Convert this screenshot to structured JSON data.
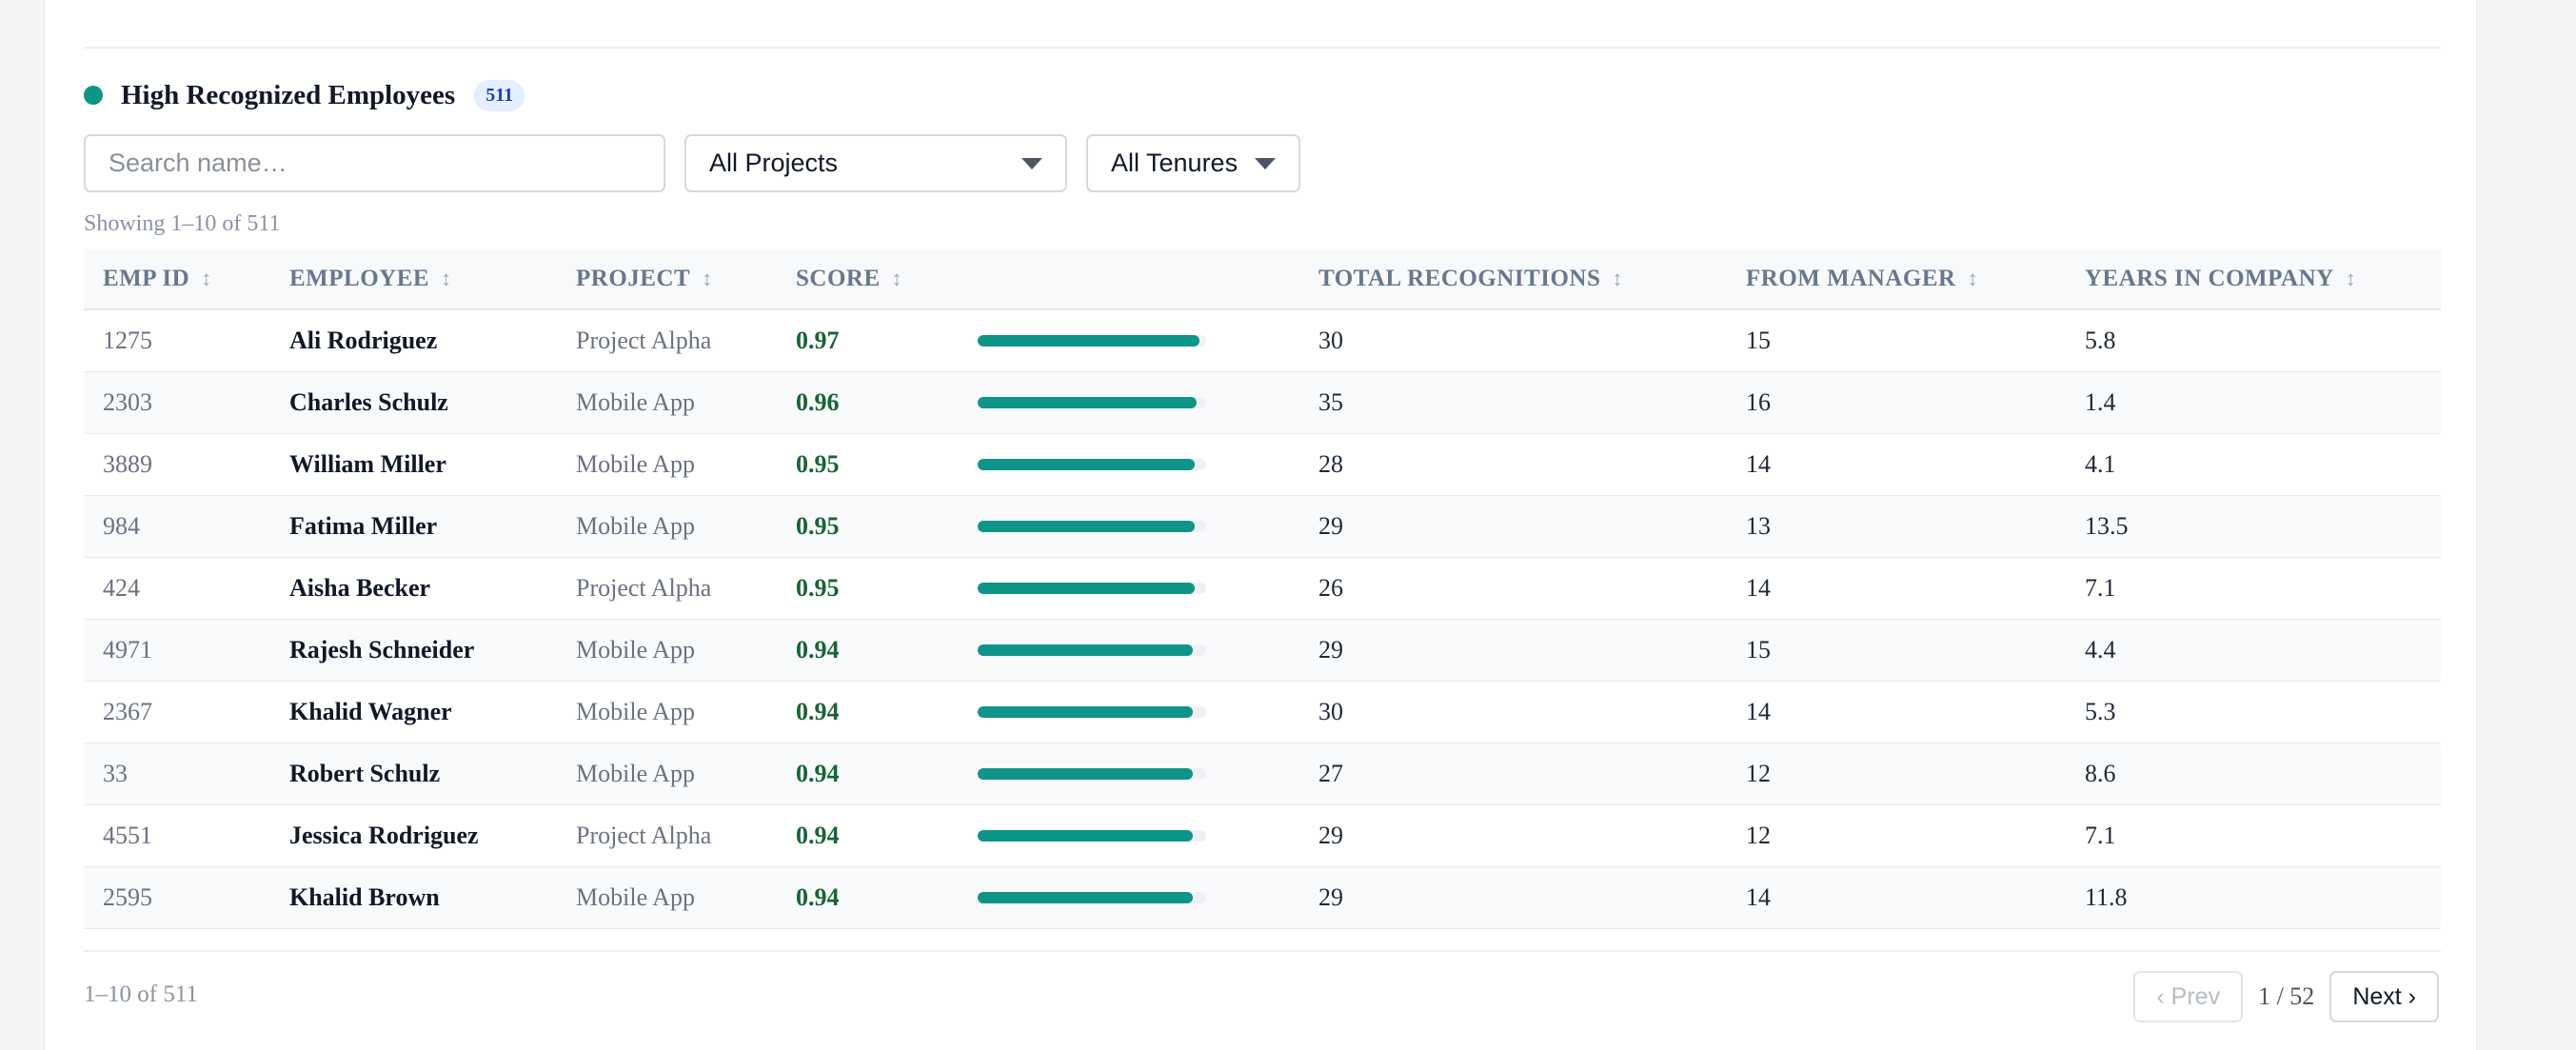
{
  "section": {
    "title": "High Recognized Employees",
    "count_badge": "511"
  },
  "filters": {
    "search_placeholder": "Search name…",
    "project_select": "All Projects",
    "tenure_select": "All Tenures"
  },
  "showing_text": "Showing 1–10 of 511",
  "table": {
    "columns": [
      "EMP ID",
      "EMPLOYEE",
      "PROJECT",
      "SCORE",
      "TOTAL RECOGNITIONS",
      "FROM MANAGER",
      "YEARS IN COMPANY"
    ],
    "sort_glyph": "↕",
    "rows": [
      {
        "id": "1275",
        "name": "Ali Rodriguez",
        "project": "Project Alpha",
        "score": "0.97",
        "total": "30",
        "manager": "15",
        "years": "5.8"
      },
      {
        "id": "2303",
        "name": "Charles Schulz",
        "project": "Mobile App",
        "score": "0.96",
        "total": "35",
        "manager": "16",
        "years": "1.4"
      },
      {
        "id": "3889",
        "name": "William Miller",
        "project": "Mobile App",
        "score": "0.95",
        "total": "28",
        "manager": "14",
        "years": "4.1"
      },
      {
        "id": "984",
        "name": "Fatima Miller",
        "project": "Mobile App",
        "score": "0.95",
        "total": "29",
        "manager": "13",
        "years": "13.5"
      },
      {
        "id": "424",
        "name": "Aisha Becker",
        "project": "Project Alpha",
        "score": "0.95",
        "total": "26",
        "manager": "14",
        "years": "7.1"
      },
      {
        "id": "4971",
        "name": "Rajesh Schneider",
        "project": "Mobile App",
        "score": "0.94",
        "total": "29",
        "manager": "15",
        "years": "4.4"
      },
      {
        "id": "2367",
        "name": "Khalid Wagner",
        "project": "Mobile App",
        "score": "0.94",
        "total": "30",
        "manager": "14",
        "years": "5.3"
      },
      {
        "id": "33",
        "name": "Robert Schulz",
        "project": "Mobile App",
        "score": "0.94",
        "total": "27",
        "manager": "12",
        "years": "8.6"
      },
      {
        "id": "4551",
        "name": "Jessica Rodriguez",
        "project": "Project Alpha",
        "score": "0.94",
        "total": "29",
        "manager": "12",
        "years": "7.1"
      },
      {
        "id": "2595",
        "name": "Khalid Brown",
        "project": "Mobile App",
        "score": "0.94",
        "total": "29",
        "manager": "14",
        "years": "11.8"
      }
    ]
  },
  "footer": {
    "range_text": "1–10 of 511",
    "prev_label": "‹ Prev",
    "page_indicator": "1 / 52",
    "next_label": "Next ›"
  },
  "colors": {
    "accent": "#0f9488",
    "score_text": "#166534",
    "badge_bg": "#e5eefe",
    "badge_text": "#1e3fae"
  }
}
